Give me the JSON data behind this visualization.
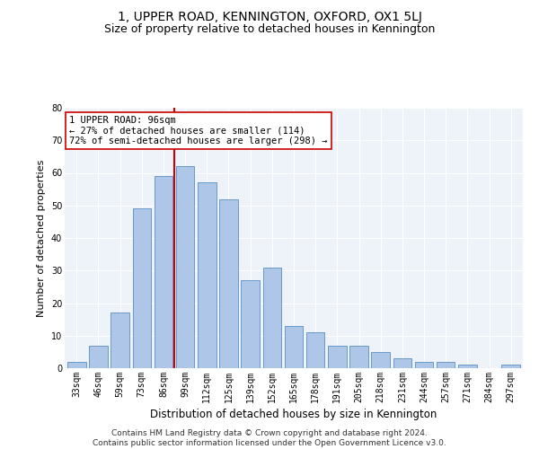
{
  "title": "1, UPPER ROAD, KENNINGTON, OXFORD, OX1 5LJ",
  "subtitle": "Size of property relative to detached houses in Kennington",
  "xlabel": "Distribution of detached houses by size in Kennington",
  "ylabel": "Number of detached properties",
  "categories": [
    "33sqm",
    "46sqm",
    "59sqm",
    "73sqm",
    "86sqm",
    "99sqm",
    "112sqm",
    "125sqm",
    "139sqm",
    "152sqm",
    "165sqm",
    "178sqm",
    "191sqm",
    "205sqm",
    "218sqm",
    "231sqm",
    "244sqm",
    "257sqm",
    "271sqm",
    "284sqm",
    "297sqm"
  ],
  "values": [
    2,
    7,
    17,
    49,
    59,
    62,
    57,
    52,
    27,
    31,
    13,
    11,
    7,
    7,
    5,
    3,
    2,
    2,
    1,
    0,
    1
  ],
  "bar_color": "#aec6e8",
  "bar_edge_color": "#5a8fc2",
  "vline_color": "#cc0000",
  "vline_index": 5,
  "annotation_line1": "1 UPPER ROAD: 96sqm",
  "annotation_line2": "← 27% of detached houses are smaller (114)",
  "annotation_line3": "72% of semi-detached houses are larger (298) →",
  "annotation_box_color": "white",
  "annotation_box_edge": "#cc0000",
  "ylim": [
    0,
    80
  ],
  "yticks": [
    0,
    10,
    20,
    30,
    40,
    50,
    60,
    70,
    80
  ],
  "bg_color": "#eef2f9",
  "footer": "Contains HM Land Registry data © Crown copyright and database right 2024.\nContains public sector information licensed under the Open Government Licence v3.0.",
  "title_fontsize": 10,
  "subtitle_fontsize": 9,
  "xlabel_fontsize": 8.5,
  "ylabel_fontsize": 8,
  "tick_fontsize": 7,
  "footer_fontsize": 6.5,
  "annotation_fontsize": 7.5
}
